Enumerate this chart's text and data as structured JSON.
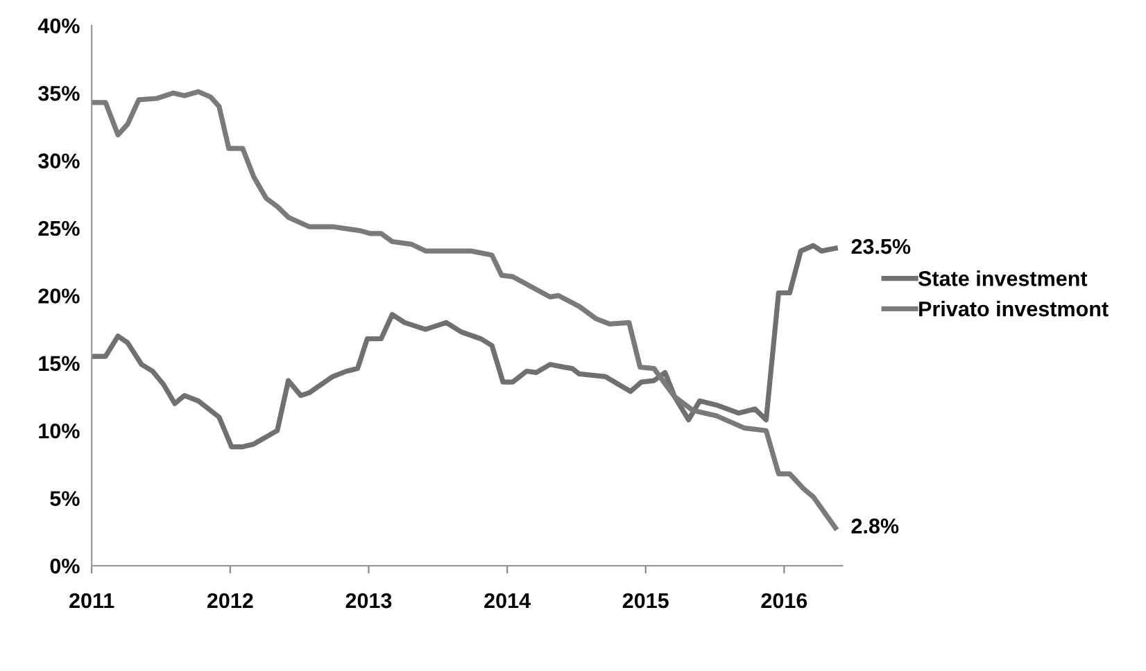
{
  "chart_data": {
    "type": "line",
    "series": [
      {
        "name": "State investment",
        "color": "#707070",
        "x": [
          2011.0,
          2011.1,
          2011.19,
          2011.26,
          2011.36,
          2011.44,
          2011.52,
          2011.6,
          2011.67,
          2011.77,
          2011.92,
          2012.01,
          2012.09,
          2012.17,
          2012.34,
          2012.42,
          2012.51,
          2012.57,
          2012.74,
          2012.84,
          2012.92,
          2012.99,
          2013.09,
          2013.17,
          2013.26,
          2013.41,
          2013.56,
          2013.67,
          2013.81,
          2013.89,
          2013.97,
          2014.04,
          2014.14,
          2014.21,
          2014.31,
          2014.41,
          2014.47,
          2014.52,
          2014.71,
          2014.89,
          2014.97,
          2015.06,
          2015.14,
          2015.21,
          2015.31,
          2015.39,
          2015.51,
          2015.67,
          2015.79,
          2015.87,
          2015.96,
          2016.04,
          2016.12,
          2016.21,
          2016.27,
          2016.37
        ],
        "values": [
          15.5,
          15.5,
          17.0,
          16.5,
          14.9,
          14.4,
          13.4,
          12.0,
          12.6,
          12.2,
          11.0,
          8.8,
          8.8,
          9.0,
          10.0,
          13.7,
          12.6,
          12.8,
          14.0,
          14.4,
          14.6,
          16.8,
          16.8,
          18.6,
          18.0,
          17.5,
          18.0,
          17.3,
          16.8,
          16.3,
          13.6,
          13.6,
          14.4,
          14.3,
          14.9,
          14.7,
          14.6,
          14.2,
          14.0,
          12.9,
          13.6,
          13.7,
          14.3,
          12.5,
          10.8,
          12.2,
          11.9,
          11.3,
          11.6,
          10.8,
          20.2,
          20.2,
          23.3,
          23.7,
          23.3,
          23.5
        ]
      },
      {
        "name": "Privato investmont",
        "color": "#7a7a7a",
        "x": [
          2011.0,
          2011.1,
          2011.19,
          2011.26,
          2011.34,
          2011.47,
          2011.59,
          2011.67,
          2011.77,
          2011.86,
          2011.92,
          2011.99,
          2012.09,
          2012.17,
          2012.26,
          2012.34,
          2012.42,
          2012.57,
          2012.74,
          2012.94,
          2013.01,
          2013.09,
          2013.17,
          2013.31,
          2013.41,
          2013.67,
          2013.74,
          2013.89,
          2013.96,
          2014.04,
          2014.31,
          2014.37,
          2014.52,
          2014.64,
          2014.74,
          2014.88,
          2014.96,
          2015.06,
          2015.21,
          2015.34,
          2015.51,
          2015.71,
          2015.87,
          2015.96,
          2016.04,
          2016.14,
          2016.21,
          2016.37
        ],
        "values": [
          34.3,
          34.3,
          31.9,
          32.7,
          34.5,
          34.6,
          35.0,
          34.8,
          35.1,
          34.7,
          34.0,
          30.9,
          30.9,
          28.8,
          27.2,
          26.6,
          25.8,
          25.1,
          25.1,
          24.8,
          24.6,
          24.6,
          24.0,
          23.8,
          23.3,
          23.3,
          23.3,
          23.0,
          21.5,
          21.4,
          19.9,
          20.0,
          19.2,
          18.3,
          17.9,
          18.0,
          14.7,
          14.6,
          12.5,
          11.5,
          11.1,
          10.2,
          10.0,
          6.8,
          6.8,
          5.7,
          5.1,
          2.8
        ]
      }
    ],
    "xlim": [
      2011,
      2016.42
    ],
    "xticks": [
      2011,
      2012,
      2013,
      2014,
      2015,
      2016
    ],
    "ylim": [
      0,
      40
    ],
    "yticks": [
      {
        "value": 0,
        "label": "0%"
      },
      {
        "value": 5,
        "label": "5%"
      },
      {
        "value": 10,
        "label": "10%"
      },
      {
        "value": 15,
        "label": "15%"
      },
      {
        "value": 20,
        "label": "20%"
      },
      {
        "value": 25,
        "label": "25%"
      },
      {
        "value": 30,
        "label": "30%"
      },
      {
        "value": 35,
        "label": "35%"
      },
      {
        "value": 40,
        "label": "40%"
      }
    ],
    "annotations": [
      {
        "text": "23.5%",
        "x": 2016.37,
        "y": 23.5
      },
      {
        "text": "2.8%",
        "x": 2016.37,
        "y": 2.8
      }
    ],
    "grid": false,
    "legend": "right",
    "line_style": "solid",
    "marker": "none"
  }
}
